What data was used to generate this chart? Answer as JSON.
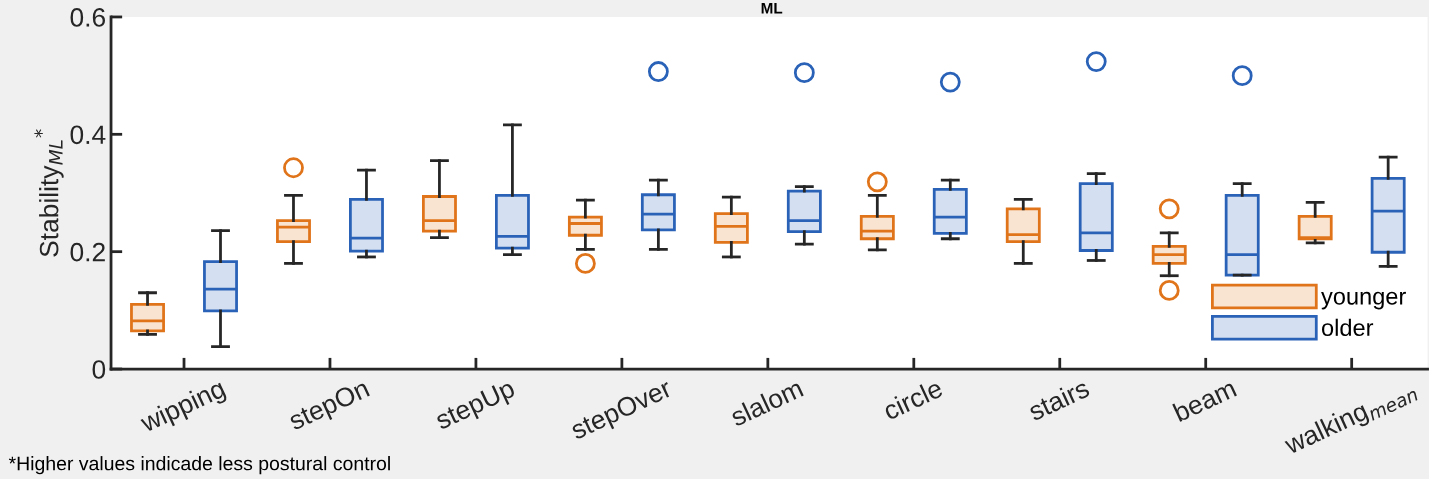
{
  "chart_data": {
    "type": "box",
    "title": "ML",
    "ylabel": "Stability$_{ML}$$^{*}$",
    "categories": [
      "wipping",
      "stepOn",
      "stepUp",
      "stepOver",
      "slalom",
      "circle",
      "stairs",
      "beam",
      "walking$_{mean}$"
    ],
    "ylim": [
      0,
      0.6
    ],
    "yticks": [
      0,
      0.2,
      0.4,
      0.6
    ],
    "grid": false,
    "legend": "bottom right",
    "annotations": [
      "*Higher values indicade less postural control"
    ],
    "series": [
      {
        "name": "younger",
        "color": "#e0741a",
        "boxes": [
          {
            "low": 0.059,
            "q1": 0.065,
            "median": 0.082,
            "q3": 0.11,
            "high": 0.13
          },
          {
            "low": 0.18,
            "q1": 0.217,
            "median": 0.242,
            "q3": 0.253,
            "high": 0.296,
            "outliers": [
              0.343
            ]
          },
          {
            "low": 0.224,
            "q1": 0.235,
            "median": 0.253,
            "q3": 0.294,
            "high": 0.355
          },
          {
            "low": 0.204,
            "q1": 0.228,
            "median": 0.248,
            "q3": 0.259,
            "high": 0.288,
            "outliers": [
              0.18
            ]
          },
          {
            "low": 0.191,
            "q1": 0.216,
            "median": 0.243,
            "q3": 0.265,
            "high": 0.293
          },
          {
            "low": 0.203,
            "q1": 0.222,
            "median": 0.235,
            "q3": 0.26,
            "high": 0.296,
            "outliers": [
              0.319
            ]
          },
          {
            "low": 0.18,
            "q1": 0.217,
            "median": 0.229,
            "q3": 0.273,
            "high": 0.289
          },
          {
            "low": 0.159,
            "q1": 0.18,
            "median": 0.195,
            "q3": 0.209,
            "high": 0.232,
            "outliers": [
              0.273,
              0.134
            ]
          },
          {
            "low": 0.215,
            "q1": 0.222,
            "median": 0.224,
            "q3": 0.26,
            "high": 0.284
          }
        ]
      },
      {
        "name": "older",
        "color": "#2a62b8",
        "boxes": [
          {
            "low": 0.038,
            "q1": 0.099,
            "median": 0.136,
            "q3": 0.183,
            "high": 0.236
          },
          {
            "low": 0.191,
            "q1": 0.201,
            "median": 0.223,
            "q3": 0.289,
            "high": 0.339
          },
          {
            "low": 0.195,
            "q1": 0.206,
            "median": 0.226,
            "q3": 0.296,
            "high": 0.416
          },
          {
            "low": 0.204,
            "q1": 0.237,
            "median": 0.264,
            "q3": 0.297,
            "high": 0.322,
            "outliers": [
              0.507
            ]
          },
          {
            "low": 0.213,
            "q1": 0.234,
            "median": 0.253,
            "q3": 0.303,
            "high": 0.311,
            "outliers": [
              0.505
            ]
          },
          {
            "low": 0.222,
            "q1": 0.231,
            "median": 0.259,
            "q3": 0.306,
            "high": 0.322,
            "outliers": [
              0.489
            ]
          },
          {
            "low": 0.185,
            "q1": 0.202,
            "median": 0.232,
            "q3": 0.316,
            "high": 0.333,
            "outliers": [
              0.524
            ]
          },
          {
            "low": 0.16,
            "q1": 0.16,
            "median": 0.195,
            "q3": 0.296,
            "high": 0.316,
            "outliers": [
              0.5
            ]
          },
          {
            "low": 0.175,
            "q1": 0.199,
            "median": 0.269,
            "q3": 0.325,
            "high": 0.361
          }
        ]
      }
    ]
  }
}
